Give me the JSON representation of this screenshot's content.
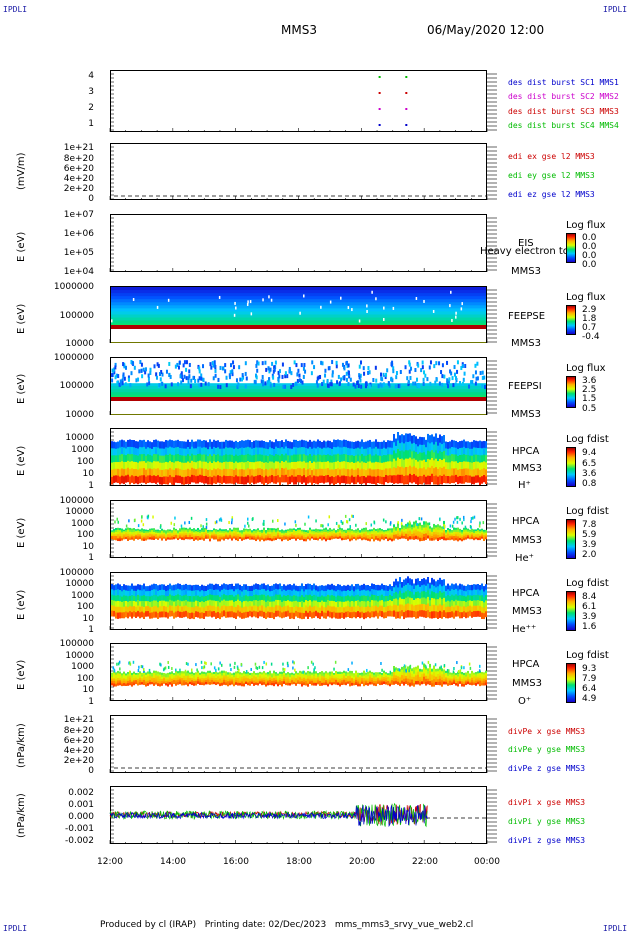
{
  "corners": [
    "IPDLI",
    "IPDLI",
    "IPDLI",
    "IPDLI"
  ],
  "header": {
    "spacecraft": "MMS3",
    "datetime": "06/May/2020 12:00"
  },
  "footer": {
    "produced": "Produced by cl (IRAP)",
    "printing": "Printing date: 02/Dec/2023",
    "file": "mms_mms3_srvy_vue_web2.cl"
  },
  "colors": {
    "red": "#cc0000",
    "green": "#00bb00",
    "blue": "#0000cc",
    "magenta": "#cc00cc"
  },
  "chart_data": [
    {
      "type": "scatter",
      "id": "burst",
      "yticks": [
        "4",
        "3",
        "2",
        "1"
      ],
      "legend": [
        {
          "label": "des dist burst SC1 MMS1",
          "color": "#0000cc"
        },
        {
          "label": "des dist burst SC2 MMS2",
          "color": "#cc00cc"
        },
        {
          "label": "des dist burst SC3 MMS3",
          "color": "#cc0000"
        },
        {
          "label": "des dist burst SC4 MMS4",
          "color": "#00bb00"
        }
      ],
      "series": [
        {
          "sc": 1,
          "x": [
            20.55,
            21.4
          ]
        },
        {
          "sc": 2,
          "x": [
            20.55,
            21.4
          ]
        },
        {
          "sc": 3,
          "x": [
            20.55,
            21.4
          ]
        },
        {
          "sc": 4,
          "x": [
            20.55,
            21.4
          ]
        }
      ]
    },
    {
      "type": "line",
      "id": "edi",
      "ylabel": "(mV/m)",
      "yticks": [
        "1e+21",
        "8e+20",
        "6e+20",
        "4e+20",
        "2e+20",
        "0"
      ],
      "legend": [
        {
          "label": "edi ex gse l2 MMS3",
          "color": "#cc0000"
        },
        {
          "label": "edi ey gse l2 MMS3",
          "color": "#00bb00"
        },
        {
          "label": "edi ez gse l2 MMS3",
          "color": "#0000cc"
        }
      ]
    },
    {
      "type": "heatmap",
      "id": "eis",
      "ylabel": "E (eV)",
      "yticks": [
        "1e+07",
        "1e+06",
        "1e+05",
        "1e+04"
      ],
      "instrument": [
        "EIS",
        "MMS3"
      ],
      "overlay": "Heavy electron to",
      "colorbar": {
        "title": "Log flux",
        "ticks": [
          "0.0",
          "0.0",
          "0.0",
          "0.0"
        ]
      }
    },
    {
      "type": "heatmap",
      "id": "feepse",
      "ylabel": "E (eV)",
      "yticks": [
        "1000000",
        "100000",
        "10000"
      ],
      "instrument": [
        "FEEPSE",
        "MMS3"
      ],
      "colorbar": {
        "title": "Log flux",
        "ticks": [
          "2.9",
          "1.8",
          "0.7",
          "-0.4"
        ]
      }
    },
    {
      "type": "heatmap",
      "id": "feepsi",
      "ylabel": "E (eV)",
      "yticks": [
        "1000000",
        "100000",
        "10000"
      ],
      "instrument": [
        "FEEPSI",
        "MMS3"
      ],
      "colorbar": {
        "title": "Log flux",
        "ticks": [
          "3.6",
          "2.5",
          "1.5",
          "0.5"
        ]
      }
    },
    {
      "type": "heatmap",
      "id": "hpca_h",
      "ylabel": "E (eV)",
      "yticks": [
        "10000",
        "1000",
        "100",
        "10",
        "1"
      ],
      "instrument": [
        "HPCA",
        "MMS3",
        "H⁺"
      ],
      "colorbar": {
        "title": "Log fdist",
        "ticks": [
          "9.4",
          "6.5",
          "3.6",
          "0.8"
        ]
      }
    },
    {
      "type": "heatmap",
      "id": "hpca_he",
      "ylabel": "E (eV)",
      "yticks": [
        "100000",
        "10000",
        "1000",
        "100",
        "10",
        "1"
      ],
      "instrument": [
        "HPCA",
        "MMS3",
        "He⁺"
      ],
      "colorbar": {
        "title": "Log fdist",
        "ticks": [
          "7.8",
          "5.9",
          "3.9",
          "2.0"
        ]
      }
    },
    {
      "type": "heatmap",
      "id": "hpca_hepp",
      "ylabel": "E (eV)",
      "yticks": [
        "100000",
        "10000",
        "1000",
        "100",
        "10",
        "1"
      ],
      "instrument": [
        "HPCA",
        "MMS3",
        "He⁺⁺"
      ],
      "colorbar": {
        "title": "Log fdist",
        "ticks": [
          "8.4",
          "6.1",
          "3.9",
          "1.6"
        ]
      }
    },
    {
      "type": "heatmap",
      "id": "hpca_o",
      "ylabel": "E (eV)",
      "yticks": [
        "100000",
        "10000",
        "1000",
        "100",
        "10",
        "1"
      ],
      "instrument": [
        "HPCA",
        "MMS3",
        "O⁺"
      ],
      "colorbar": {
        "title": "Log fdist",
        "ticks": [
          "9.3",
          "7.9",
          "6.4",
          "4.9"
        ]
      }
    },
    {
      "type": "line",
      "id": "divpe",
      "ylabel": "(nPa/km)",
      "yticks": [
        "1e+21",
        "8e+20",
        "6e+20",
        "4e+20",
        "2e+20",
        "0"
      ],
      "legend": [
        {
          "label": "divPe x gse MMS3",
          "color": "#cc0000"
        },
        {
          "label": "divPe y gse MMS3",
          "color": "#00bb00"
        },
        {
          "label": "divPe z gse MMS3",
          "color": "#0000cc"
        }
      ]
    },
    {
      "type": "line",
      "id": "divpi",
      "ylabel": "(nPa/km)",
      "yticks": [
        "0.002",
        "0.001",
        "0.000",
        "-0.001",
        "-0.002"
      ],
      "ylim": [
        -0.0025,
        0.0025
      ],
      "legend": [
        {
          "label": "divPi x gse MMS3",
          "color": "#cc0000"
        },
        {
          "label": "divPi y gse MMS3",
          "color": "#00bb00"
        },
        {
          "label": "divPi z gse MMS3",
          "color": "#0000cc"
        }
      ]
    }
  ],
  "xaxis": {
    "ticks": [
      "12:00",
      "14:00",
      "16:00",
      "18:00",
      "20:00",
      "22:00",
      "00:00"
    ]
  }
}
